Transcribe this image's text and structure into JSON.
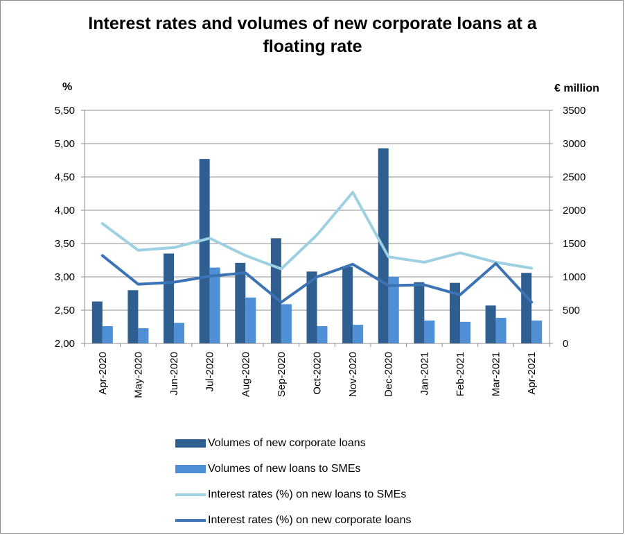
{
  "chart_data": {
    "type": "bar",
    "title": "Interest rates and volumes of new corporate loans at a floating rate",
    "title_lines": [
      "Interest rates and volumes of new corporate loans at a",
      "floating rate"
    ],
    "left_axis_unit": "%",
    "right_axis_unit": "€ million",
    "left_axis": {
      "min": 2.0,
      "max": 5.5,
      "step": 0.5,
      "tick_labels": [
        "2,00",
        "2,50",
        "3,00",
        "3,50",
        "4,00",
        "4,50",
        "5,00",
        "5,50"
      ]
    },
    "right_axis": {
      "min": 0,
      "max": 3500,
      "step": 500,
      "tick_labels": [
        "0",
        "500",
        "1000",
        "1500",
        "2000",
        "2500",
        "3000",
        "3500"
      ]
    },
    "grid": "horizontal",
    "legend_placement": "bottom",
    "categories": [
      "Apr-2020",
      "May-2020",
      "Jun-2020",
      "Jul-2020",
      "Aug-2020",
      "Sep-2020",
      "Oct-2020",
      "Nov-2020",
      "Dec-2020",
      "Jan-2021",
      "Feb-2021",
      "Mar-2021",
      "Apr-2021"
    ],
    "series": [
      {
        "name": "Volumes of new corporate loans",
        "kind": "bar",
        "axis": "right",
        "color": "#2f5e91",
        "values": [
          630,
          800,
          1350,
          2770,
          1210,
          1580,
          1080,
          1150,
          2930,
          920,
          910,
          570,
          1060
        ]
      },
      {
        "name": "Volumes of new loans to SMEs",
        "kind": "bar",
        "axis": "right",
        "color": "#4f8fd6",
        "values": [
          260,
          230,
          310,
          1140,
          690,
          590,
          260,
          280,
          1000,
          345,
          325,
          385,
          345
        ]
      },
      {
        "name": "Interest rates (%) on new loans to SMEs",
        "kind": "line",
        "axis": "left",
        "color": "#9dd0e0",
        "values": [
          3.8,
          3.4,
          3.44,
          3.58,
          3.32,
          3.12,
          3.63,
          4.27,
          3.3,
          3.22,
          3.36,
          3.22,
          3.13
        ]
      },
      {
        "name": "Interest rates (%) on new corporate loans",
        "kind": "line",
        "axis": "left",
        "color": "#3b73b4",
        "values": [
          3.32,
          2.89,
          2.92,
          3.01,
          3.06,
          2.62,
          3.0,
          3.19,
          2.87,
          2.88,
          2.73,
          3.2,
          2.62
        ]
      }
    ]
  }
}
